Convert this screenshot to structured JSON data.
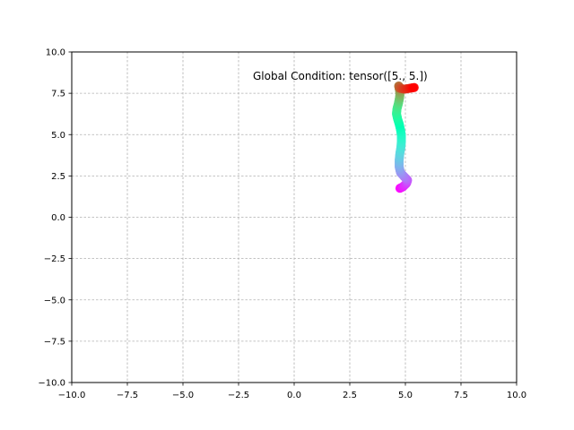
{
  "chart_data": {
    "type": "scatter",
    "title": "",
    "xlabel": "",
    "ylabel": "",
    "xlim": [
      -10,
      10
    ],
    "ylim": [
      -10,
      10
    ],
    "xticks": [
      -10,
      -7.5,
      -5,
      -2.5,
      0,
      2.5,
      5,
      7.5,
      10
    ],
    "yticks": [
      -10,
      -7.5,
      -5,
      -2.5,
      0,
      2.5,
      5,
      7.5,
      10
    ],
    "xtick_labels": [
      "−10.0",
      "−7.5",
      "−5.0",
      "−2.5",
      "0.0",
      "2.5",
      "5.0",
      "7.5",
      "10.0"
    ],
    "ytick_labels": [
      "−10.0",
      "−7.5",
      "−5.0",
      "−2.5",
      "0.0",
      "2.5",
      "5.0",
      "7.5",
      "10.0"
    ],
    "grid": true,
    "colormap": "rainbow",
    "annotation": "Global Condition: tensor([5., 5.])",
    "series": [
      {
        "x": [
          4.75,
          4.9,
          5.05,
          5.1,
          4.95,
          4.78,
          4.72,
          4.72,
          4.75,
          4.8,
          4.82,
          4.82,
          4.78,
          4.72,
          4.65,
          4.6,
          4.62,
          4.68,
          4.72,
          4.75,
          4.75,
          4.72,
          4.7,
          4.75,
          4.95,
          5.2,
          5.4
        ],
        "y": [
          1.75,
          1.85,
          2.05,
          2.25,
          2.45,
          2.7,
          3.05,
          3.45,
          3.85,
          4.25,
          4.6,
          4.95,
          5.3,
          5.65,
          5.95,
          6.25,
          6.55,
          6.85,
          7.1,
          7.35,
          7.6,
          7.8,
          7.95,
          7.8,
          7.75,
          7.8,
          7.85
        ]
      }
    ]
  }
}
